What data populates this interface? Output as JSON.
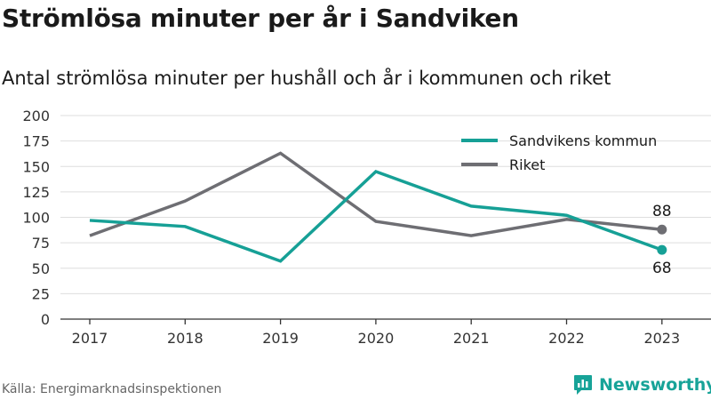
{
  "title": "Strömlösa minuter per år i Sandviken",
  "subtitle": "Antal strömlösa minuter per hushåll och år i kommunen och riket",
  "source": "Källa: Energimarknadsinspektionen",
  "brand": {
    "name": "Newsworthy",
    "icon": "newsworthy-logo-icon",
    "color": "#17a398"
  },
  "chart_data": {
    "type": "line",
    "x": [
      "2017",
      "2018",
      "2019",
      "2020",
      "2021",
      "2022",
      "2023"
    ],
    "ylim": [
      0,
      200
    ],
    "yticks": [
      "0",
      "25",
      "50",
      "75",
      "100",
      "125",
      "150",
      "175",
      "200"
    ],
    "grid": true,
    "legend_position": "top-right",
    "series": [
      {
        "name": "Sandvikens kommun",
        "color": "#16a096",
        "values": [
          97,
          91,
          57,
          145,
          111,
          102,
          68
        ],
        "end_label": "68",
        "end_label_position": "below"
      },
      {
        "name": "Riket",
        "color": "#6e6e73",
        "values": [
          82,
          116,
          163,
          96,
          82,
          98,
          88
        ],
        "end_label": "88",
        "end_label_position": "above"
      }
    ]
  }
}
